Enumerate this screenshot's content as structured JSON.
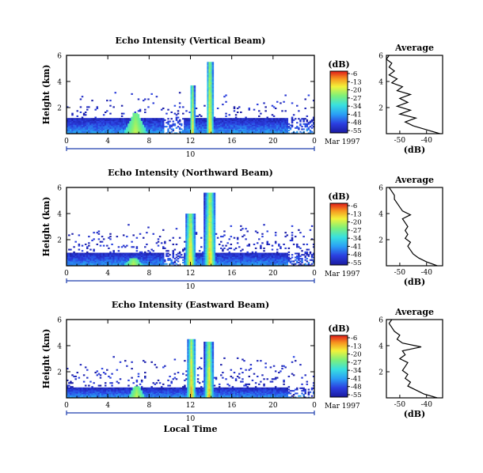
{
  "chart_data": [
    {
      "type": "heatmap",
      "title": "Echo Intensity (Vertical Beam)",
      "ylabel": "Height (km)",
      "xlabel": "",
      "ylim": [
        0,
        6
      ],
      "xlim": [
        0,
        24
      ],
      "x_ticks": [
        "0",
        "4",
        "8",
        "12",
        "16",
        "20",
        "0"
      ],
      "y_ticks": [
        "2",
        "4",
        "6"
      ],
      "date_label": "10",
      "month_label": "Mar 1997",
      "colorbar": {
        "label": "(dB)",
        "ticks": [
          "-6",
          "-13",
          "-20",
          "-27",
          "-34",
          "-41",
          "-48",
          "-55"
        ]
      },
      "features": {
        "spikes": [
          {
            "x": 12.2,
            "top": 3.7,
            "w": 0.25
          },
          {
            "x": 13.9,
            "top": 5.5,
            "w": 0.35
          }
        ],
        "blob": {
          "x": 6.7,
          "top": 1.6,
          "w": 1.2
        },
        "low_layer_top": 1.2,
        "noise": 0.12
      },
      "profile": {
        "title": "Average",
        "xlabel": "(dB)",
        "xlim": [
          -55,
          -34
        ],
        "x_ticks": [
          "-50",
          "-40"
        ],
        "y_ticks": [
          "2",
          "4",
          "6"
        ],
        "heights": [
          0.0,
          0.3,
          0.6,
          0.9,
          1.2,
          1.5,
          1.8,
          2.1,
          2.4,
          2.7,
          3.0,
          3.3,
          3.6,
          3.9,
          4.2,
          4.5,
          4.8,
          5.1,
          5.4,
          5.7,
          6.0
        ],
        "values": [
          -35,
          -40,
          -45,
          -48,
          -44,
          -50,
          -46,
          -51,
          -47,
          -50,
          -46,
          -51,
          -49,
          -53,
          -51,
          -54,
          -52,
          -54,
          -53,
          -55,
          -54
        ]
      }
    },
    {
      "type": "heatmap",
      "title": "Echo Intensity (Northward Beam)",
      "ylabel": "Height (km)",
      "xlabel": "",
      "ylim": [
        0,
        6
      ],
      "xlim": [
        0,
        24
      ],
      "x_ticks": [
        "0",
        "4",
        "8",
        "12",
        "16",
        "20",
        "0"
      ],
      "y_ticks": [
        "2",
        "4",
        "6"
      ],
      "date_label": "10",
      "month_label": "Mar 1997",
      "colorbar": {
        "label": "(dB)",
        "ticks": [
          "-6",
          "-13",
          "-20",
          "-27",
          "-34",
          "-41",
          "-48",
          "-55"
        ]
      },
      "features": {
        "spikes": [
          {
            "x": 12.0,
            "top": 4.0,
            "w": 0.5
          },
          {
            "x": 13.9,
            "top": 5.6,
            "w": 0.55
          }
        ],
        "blob": {
          "x": 6.5,
          "top": 0.6,
          "w": 1.0
        },
        "low_layer_top": 1.0,
        "noise": 0.22
      },
      "profile": {
        "title": "Average",
        "xlabel": "(dB)",
        "xlim": [
          -55,
          -34
        ],
        "x_ticks": [
          "-50",
          "-40"
        ],
        "y_ticks": [
          "2",
          "4",
          "6"
        ],
        "heights": [
          0.0,
          0.3,
          0.6,
          0.9,
          1.2,
          1.5,
          1.8,
          2.1,
          2.4,
          2.7,
          3.0,
          3.3,
          3.6,
          3.9,
          4.2,
          4.5,
          4.8,
          5.1,
          5.4,
          5.7,
          6.0
        ],
        "values": [
          -36,
          -40,
          -43,
          -45,
          -46,
          -47,
          -46,
          -48,
          -47,
          -48,
          -47,
          -48,
          -49,
          -46,
          -49,
          -50,
          -51,
          -52,
          -52,
          -53,
          -54
        ]
      }
    },
    {
      "type": "heatmap",
      "title": "Echo Intensity (Eastward Beam)",
      "ylabel": "Height (km)",
      "xlabel": "Local Time",
      "ylim": [
        0,
        6
      ],
      "xlim": [
        0,
        24
      ],
      "x_ticks": [
        "0",
        "4",
        "8",
        "12",
        "16",
        "20",
        "0"
      ],
      "y_ticks": [
        "2",
        "4",
        "6"
      ],
      "date_label": "10",
      "month_label": "Mar 1997",
      "colorbar": {
        "label": "(dB)",
        "ticks": [
          "-6",
          "-13",
          "-20",
          "-27",
          "-34",
          "-41",
          "-48",
          "-55"
        ]
      },
      "features": {
        "spikes": [
          {
            "x": 12.1,
            "top": 4.5,
            "w": 0.45
          },
          {
            "x": 13.8,
            "top": 4.3,
            "w": 0.45
          }
        ],
        "blob": {
          "x": 6.8,
          "top": 0.9,
          "w": 0.9
        },
        "low_layer_top": 0.8,
        "noise": 0.14
      },
      "profile": {
        "title": "Average",
        "xlabel": "(dB)",
        "xlim": [
          -55,
          -34
        ],
        "x_ticks": [
          "-50",
          "-40"
        ],
        "y_ticks": [
          "2",
          "4",
          "6"
        ],
        "heights": [
          0.0,
          0.3,
          0.6,
          0.9,
          1.2,
          1.5,
          1.8,
          2.1,
          2.4,
          2.7,
          3.0,
          3.3,
          3.6,
          3.9,
          4.2,
          4.5,
          4.8,
          5.1,
          5.4,
          5.7,
          6.0
        ],
        "values": [
          -36,
          -41,
          -44,
          -47,
          -46,
          -48,
          -47,
          -49,
          -48,
          -47,
          -50,
          -48,
          -49,
          -42,
          -49,
          -51,
          -50,
          -52,
          -53,
          -54,
          -53
        ]
      }
    }
  ]
}
